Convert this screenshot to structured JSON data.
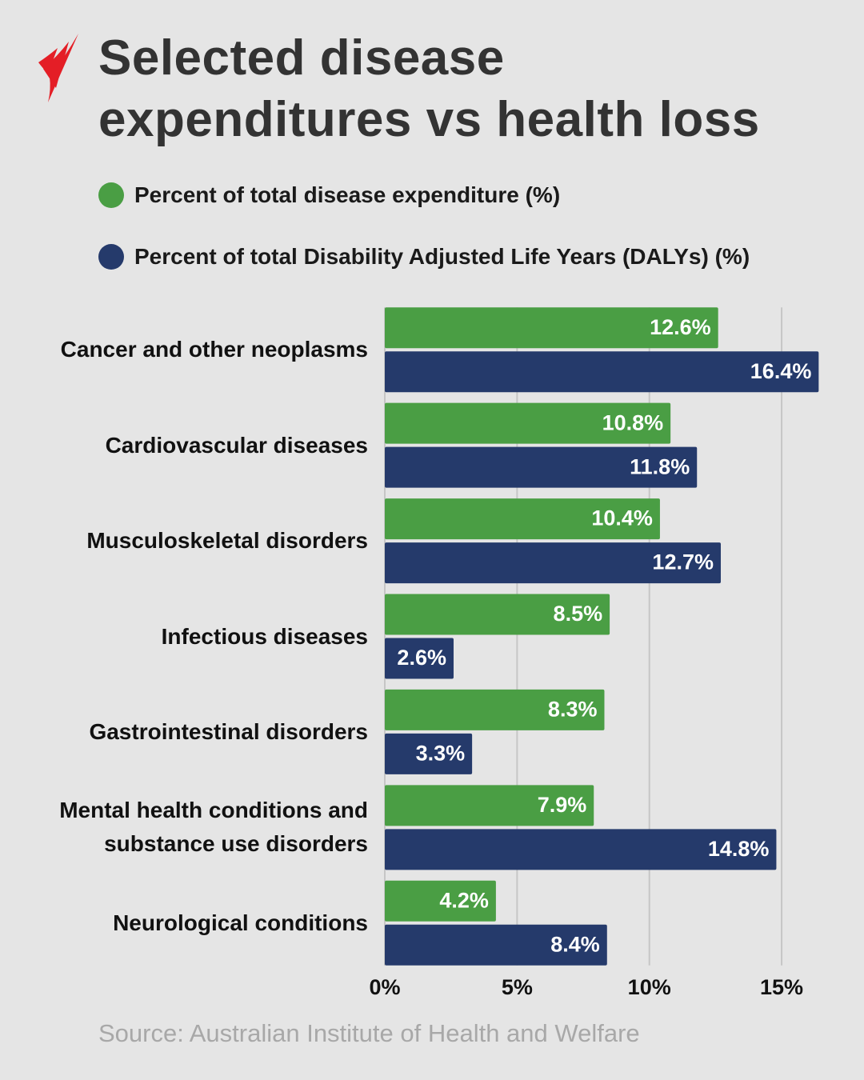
{
  "chart_data": {
    "type": "hbar",
    "title": "Selected disease\nexpenditures vs health loss",
    "source": "Source: Australian Institute of Health and Welfare",
    "categories": [
      "Cancer and other neoplasms",
      "Cardiovascular diseases",
      "Musculoskeletal disorders",
      "Infectious diseases",
      "Gastrointestinal disorders",
      "Mental health conditions and\nsubstance use disorders",
      "Neurological conditions"
    ],
    "series": [
      {
        "name": "Percent of total disease expenditure (%)",
        "color": "#4a9e44",
        "values": [
          12.6,
          10.8,
          10.4,
          8.5,
          8.3,
          7.9,
          4.2
        ],
        "value_labels": [
          "12.6%",
          "10.8%",
          "10.4%",
          "8.5%",
          "8.3%",
          "7.9%",
          "4.2%"
        ]
      },
      {
        "name": "Percent of total Disability Adjusted Life Years (DALYs) (%)",
        "color": "#253a6b",
        "values": [
          16.4,
          11.8,
          12.7,
          2.6,
          3.3,
          14.8,
          8.4
        ],
        "value_labels": [
          "16.4%",
          "11.8%",
          "12.7%",
          "2.6%",
          "3.3%",
          "14.8%",
          "8.4%"
        ]
      }
    ],
    "xlim": [
      0,
      17
    ],
    "xticks": [
      {
        "value": 0,
        "label": "0%"
      },
      {
        "value": 5,
        "label": "5%"
      },
      {
        "value": 10,
        "label": "10%"
      },
      {
        "value": 15,
        "label": "15%"
      }
    ],
    "grid": true
  }
}
